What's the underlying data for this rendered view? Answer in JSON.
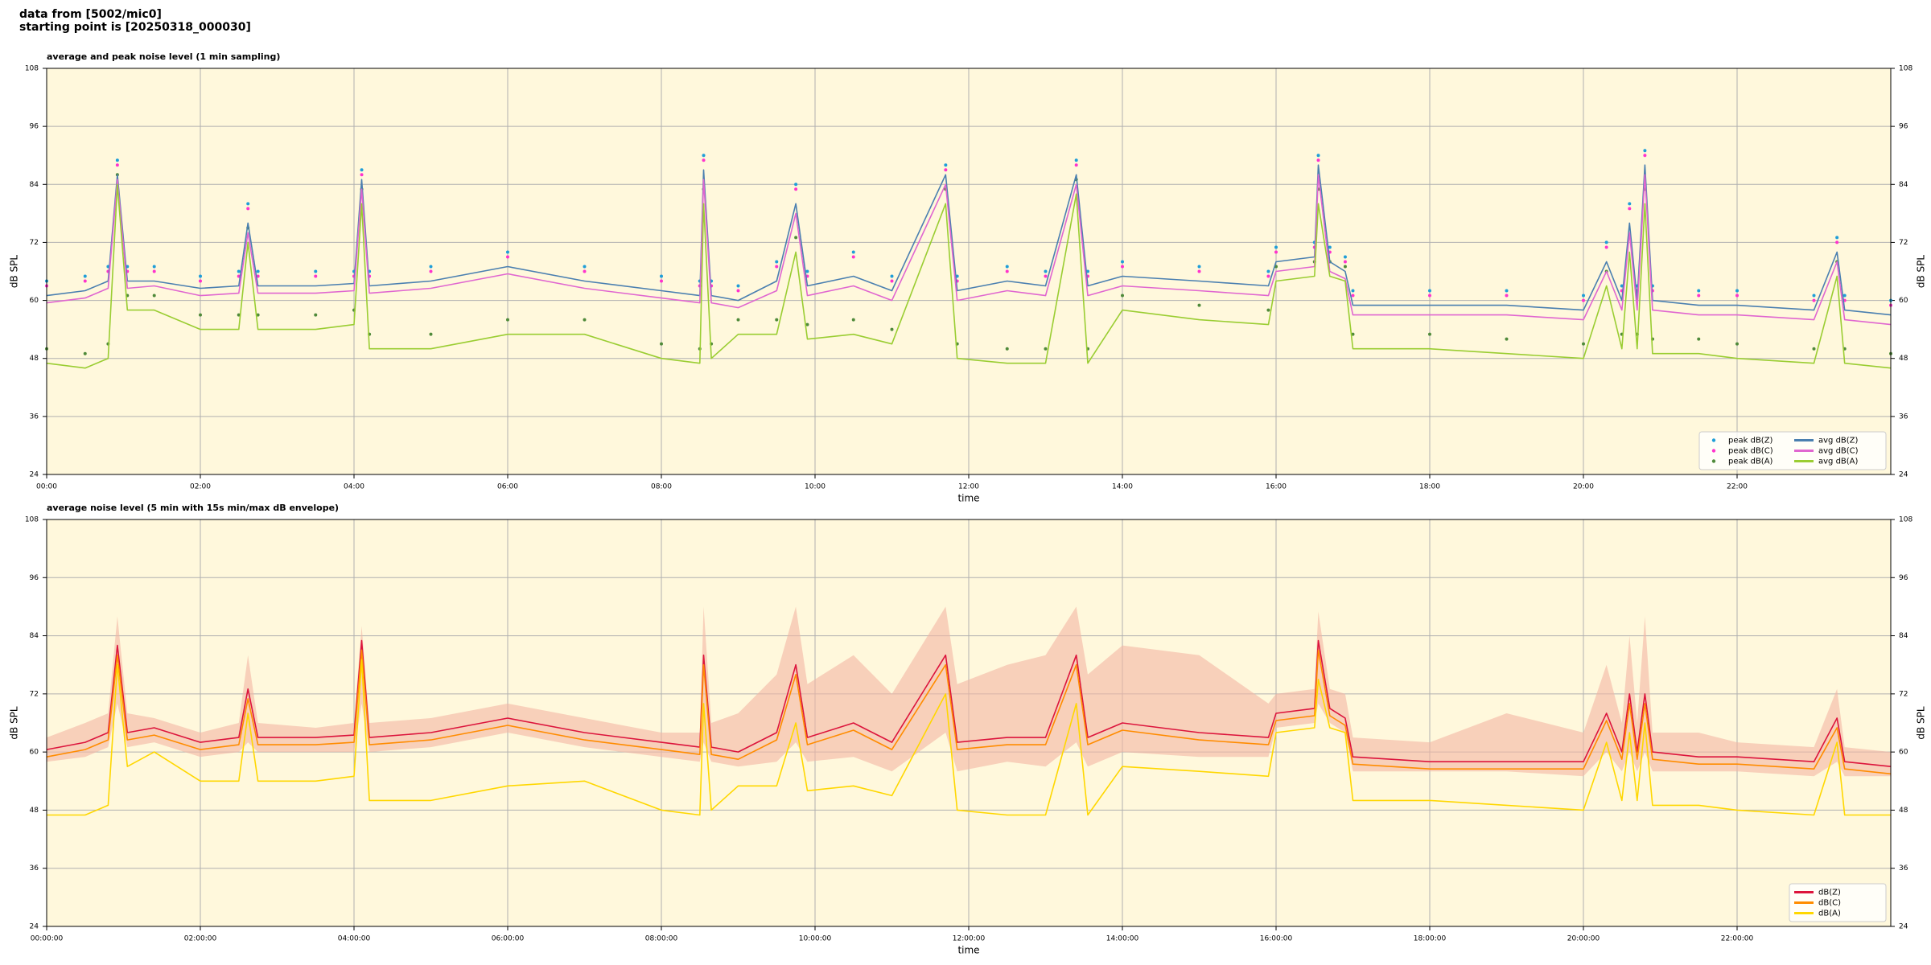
{
  "header": {
    "lines": [
      "data from [5002/mic0]",
      "starting point is [20250318_000030]"
    ]
  },
  "chart_data": [
    {
      "type": "line",
      "title": "average and peak noise level (1 min sampling)",
      "x_label": "time",
      "y_label": "dB SPL",
      "xlim": [
        0,
        24
      ],
      "ylim": [
        24,
        108
      ],
      "yticks": [
        24,
        36,
        48,
        60,
        72,
        84,
        96,
        108
      ],
      "xticks": [
        {
          "value": 0,
          "label": "00:00"
        },
        {
          "value": 2,
          "label": "02:00"
        },
        {
          "value": 4,
          "label": "04:00"
        },
        {
          "value": 6,
          "label": "06:00"
        },
        {
          "value": 8,
          "label": "08:00"
        },
        {
          "value": 10,
          "label": "10:00"
        },
        {
          "value": 12,
          "label": "12:00"
        },
        {
          "value": 14,
          "label": "14:00"
        },
        {
          "value": 16,
          "label": "16:00"
        },
        {
          "value": 18,
          "label": "18:00"
        },
        {
          "value": 20,
          "label": "20:00"
        },
        {
          "value": 22,
          "label": "22:00"
        }
      ],
      "grid": true,
      "legend": "lower right",
      "legend_columns": 2,
      "x": [
        0,
        0.5,
        0.8,
        0.92,
        1.05,
        1.4,
        2.0,
        2.5,
        2.62,
        2.75,
        3.5,
        4.0,
        4.1,
        4.2,
        5.0,
        6.0,
        7.0,
        8.0,
        8.5,
        8.55,
        8.65,
        9.0,
        9.5,
        9.75,
        9.9,
        10.5,
        11.0,
        11.7,
        11.85,
        12.5,
        13.0,
        13.4,
        13.55,
        14.0,
        15.0,
        15.9,
        16.0,
        16.5,
        16.55,
        16.7,
        16.9,
        17.0,
        18.0,
        19.0,
        20.0,
        20.3,
        20.5,
        20.6,
        20.7,
        20.8,
        20.9,
        21.5,
        22.0,
        23.0,
        23.3,
        23.4,
        24
      ],
      "series": [
        {
          "name": "peak dB(Z)",
          "kind": "scatter",
          "color": "#1f9ed8",
          "values": [
            64,
            65,
            67,
            89,
            67,
            67,
            65,
            66,
            80,
            66,
            66,
            66,
            87,
            66,
            67,
            70,
            67,
            65,
            64,
            90,
            64,
            63,
            68,
            84,
            66,
            70,
            65,
            88,
            65,
            67,
            66,
            89,
            66,
            68,
            67,
            66,
            71,
            72,
            90,
            71,
            69,
            62,
            62,
            62,
            61,
            72,
            63,
            80,
            63,
            91,
            63,
            62,
            62,
            61,
            73,
            61,
            60
          ]
        },
        {
          "name": "peak dB(C)",
          "kind": "scatter",
          "color": "#ff33cc",
          "values": [
            63,
            64,
            66,
            88,
            66,
            66,
            64,
            65,
            79,
            65,
            65,
            65,
            86,
            65,
            66,
            69,
            66,
            64,
            63,
            89,
            63,
            62,
            67,
            83,
            65,
            69,
            64,
            87,
            64,
            66,
            65,
            88,
            65,
            67,
            66,
            65,
            70,
            71,
            89,
            70,
            68,
            61,
            61,
            61,
            60,
            71,
            62,
            79,
            62,
            90,
            62,
            61,
            61,
            60,
            72,
            60,
            59
          ]
        },
        {
          "name": "peak dB(A)",
          "kind": "scatter",
          "color": "#4f8a3a",
          "values": [
            50,
            49,
            51,
            86,
            61,
            61,
            57,
            57,
            75,
            57,
            57,
            58,
            83,
            53,
            53,
            56,
            56,
            51,
            50,
            83,
            51,
            56,
            56,
            73,
            55,
            56,
            54,
            83,
            51,
            50,
            50,
            85,
            50,
            61,
            59,
            58,
            67,
            68,
            83,
            68,
            67,
            53,
            53,
            52,
            51,
            66,
            53,
            73,
            53,
            83,
            52,
            52,
            51,
            50,
            68,
            50,
            49
          ]
        },
        {
          "name": "avg dB(Z)",
          "kind": "line",
          "color": "#4a7fb0",
          "values": [
            61,
            62,
            64,
            86,
            64,
            64,
            62.5,
            63,
            76,
            63,
            63,
            63.5,
            85,
            63,
            64,
            67,
            64,
            62,
            61,
            87,
            61,
            60,
            64,
            80,
            63,
            65,
            62,
            86,
            62,
            64,
            63,
            86,
            63,
            65,
            64,
            63,
            68,
            69,
            88,
            68,
            66,
            59,
            59,
            59,
            58,
            68,
            60,
            76,
            60,
            88,
            60,
            59,
            59,
            58,
            70,
            58,
            57
          ]
        },
        {
          "name": "avg dB(C)",
          "kind": "line",
          "color": "#e066d0",
          "values": [
            59.5,
            60.5,
            62.5,
            85,
            62.5,
            63,
            61,
            61.5,
            74,
            61.5,
            61.5,
            62,
            83,
            61.5,
            62.5,
            65.5,
            62.5,
            60.5,
            59.5,
            85,
            59.5,
            58.5,
            62,
            78,
            61,
            63,
            60,
            84,
            60,
            62,
            61,
            84,
            61,
            63,
            62,
            61,
            66,
            67,
            86,
            66,
            64.5,
            57,
            57,
            57,
            56,
            66,
            58,
            74,
            58,
            86,
            58,
            57,
            57,
            56,
            68,
            56,
            55
          ]
        },
        {
          "name": "avg dB(A)",
          "kind": "line",
          "color": "#9acd32",
          "values": [
            47,
            46,
            48,
            84,
            58,
            58,
            54,
            54,
            72,
            54,
            54,
            55,
            80,
            50,
            50,
            53,
            53,
            48,
            47,
            80,
            48,
            53,
            53,
            70,
            52,
            53,
            51,
            80,
            48,
            47,
            47,
            82,
            47,
            58,
            56,
            55,
            64,
            65,
            80,
            65,
            64,
            50,
            50,
            49,
            48,
            63,
            50,
            70,
            50,
            80,
            49,
            49,
            48,
            47,
            65,
            47,
            46
          ]
        }
      ]
    },
    {
      "type": "line",
      "title": "average noise level (5 min with 15s min/max dB envelope)",
      "x_label": "time",
      "y_label": "dB SPL",
      "xlim": [
        0,
        24
      ],
      "ylim": [
        24,
        108
      ],
      "yticks": [
        24,
        36,
        48,
        60,
        72,
        84,
        96,
        108
      ],
      "xticks": [
        {
          "value": 0,
          "label": "00:00:00"
        },
        {
          "value": 2,
          "label": "02:00:00"
        },
        {
          "value": 4,
          "label": "04:00:00"
        },
        {
          "value": 6,
          "label": "06:00:00"
        },
        {
          "value": 8,
          "label": "08:00:00"
        },
        {
          "value": 10,
          "label": "10:00:00"
        },
        {
          "value": 12,
          "label": "12:00:00"
        },
        {
          "value": 14,
          "label": "14:00:00"
        },
        {
          "value": 16,
          "label": "16:00:00"
        },
        {
          "value": 18,
          "label": "18:00:00"
        },
        {
          "value": 20,
          "label": "20:00:00"
        },
        {
          "value": 22,
          "label": "22:00:00"
        }
      ],
      "grid": true,
      "legend": "lower right",
      "legend_columns": 1,
      "x": [
        0,
        0.5,
        0.8,
        0.92,
        1.05,
        1.4,
        2.0,
        2.5,
        2.62,
        2.75,
        3.5,
        4.0,
        4.1,
        4.2,
        5.0,
        6.0,
        7.0,
        8.0,
        8.5,
        8.55,
        8.65,
        9.0,
        9.5,
        9.75,
        9.9,
        10.5,
        11.0,
        11.7,
        11.85,
        12.5,
        13.0,
        13.4,
        13.55,
        14.0,
        15.0,
        15.9,
        16.0,
        16.5,
        16.55,
        16.7,
        16.9,
        17.0,
        18.0,
        19.0,
        20.0,
        20.3,
        20.5,
        20.6,
        20.7,
        20.8,
        20.9,
        21.5,
        22.0,
        23.0,
        23.3,
        23.4,
        24
      ],
      "envelope": {
        "color": "#f4b6a4",
        "lower": [
          58,
          59,
          61,
          70,
          61,
          62,
          59,
          60,
          62,
          60,
          60,
          60,
          70,
          60,
          61,
          64,
          61,
          59,
          58,
          62,
          58,
          57,
          58,
          62,
          58,
          59,
          56,
          64,
          56,
          58,
          57,
          62,
          57,
          60,
          59,
          59,
          65,
          66,
          70,
          66,
          64,
          56,
          56,
          56,
          55,
          60,
          56,
          60,
          56,
          60,
          56,
          56,
          56,
          55,
          58,
          55,
          55
        ],
        "upper": [
          63,
          66,
          68,
          88,
          68,
          67,
          64,
          66,
          80,
          66,
          65,
          66,
          86,
          66,
          67,
          70,
          67,
          64,
          64,
          90,
          66,
          68,
          76,
          90,
          74,
          80,
          72,
          90,
          74,
          78,
          80,
          90,
          76,
          82,
          80,
          70,
          72,
          73,
          89,
          73,
          72,
          63,
          62,
          68,
          64,
          78,
          66,
          84,
          66,
          88,
          64,
          64,
          62,
          61,
          73,
          61,
          60
        ]
      },
      "series": [
        {
          "name": "dB(Z)",
          "kind": "line",
          "color": "#dc143c",
          "values": [
            60.5,
            62,
            64,
            82,
            64,
            65,
            62,
            63,
            73,
            63,
            63,
            63.5,
            83,
            63,
            64,
            67,
            64,
            62,
            61,
            80,
            61,
            60,
            64,
            78,
            63,
            66,
            62,
            80,
            62,
            63,
            63,
            80,
            63,
            66,
            64,
            63,
            68,
            69,
            83,
            69,
            67,
            59,
            58,
            58,
            58,
            68,
            60,
            72,
            60,
            72,
            60,
            59,
            59,
            58,
            67,
            58,
            57
          ]
        },
        {
          "name": "dB(C)",
          "kind": "line",
          "color": "#ff8c00",
          "values": [
            59,
            60.5,
            62.5,
            80,
            62.5,
            63.5,
            60.5,
            61.5,
            71,
            61.5,
            61.5,
            62,
            81,
            61.5,
            62.5,
            65.5,
            62.5,
            60.5,
            59.5,
            78,
            59.5,
            58.5,
            62.5,
            76,
            61.5,
            64.5,
            60.5,
            78,
            60.5,
            61.5,
            61.5,
            78,
            61.5,
            64.5,
            62.5,
            61.5,
            66.5,
            67.5,
            81,
            67.5,
            65.5,
            57.5,
            56.5,
            56.5,
            56.5,
            66.5,
            58.5,
            70,
            58.5,
            70,
            58.5,
            57.5,
            57.5,
            56.5,
            65,
            56.5,
            55.5
          ]
        },
        {
          "name": "dB(A)",
          "kind": "line",
          "color": "#ffd700",
          "values": [
            47,
            47,
            49,
            78,
            57,
            60,
            54,
            54,
            68,
            54,
            54,
            55,
            79,
            50,
            50,
            53,
            54,
            48,
            47,
            70,
            48,
            53,
            53,
            66,
            52,
            53,
            51,
            72,
            48,
            47,
            47,
            70,
            47,
            57,
            56,
            55,
            64,
            65,
            75,
            65,
            64,
            50,
            50,
            49,
            48,
            62,
            50,
            64,
            50,
            66,
            49,
            49,
            48,
            47,
            62,
            47,
            47
          ]
        }
      ]
    }
  ]
}
